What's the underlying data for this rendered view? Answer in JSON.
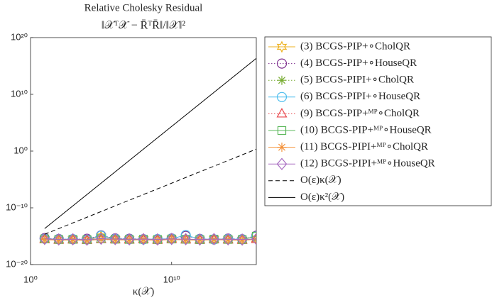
{
  "chart_data": {
    "type": "line",
    "title": "Relative Cholesky Residual",
    "subtitle": "‖𝒳ᵀ𝒳 − R̄ᵀR̄‖/‖𝒳‖²",
    "xlabel": "κ(𝒳)",
    "xscale": "log",
    "yscale": "log",
    "xlim": [
      1,
      1e+16
    ],
    "ylim": [
      1e-20,
      1e+20
    ],
    "xticks": [
      {
        "value": 1,
        "label": "10⁰"
      },
      {
        "value": 10000000000.0,
        "label": "10¹⁰"
      }
    ],
    "yticks": [
      {
        "value": 1e-20,
        "label": "10⁻²⁰"
      },
      {
        "value": 1e-10,
        "label": "10⁻¹⁰"
      },
      {
        "value": 1,
        "label": "10⁰"
      },
      {
        "value": 10000000000.0,
        "label": "10¹⁰"
      },
      {
        "value": 1e+20,
        "label": "10²⁰"
      }
    ],
    "grid": false,
    "legend": "outside-right",
    "x": [
      10.0,
      100.0,
      1000.0,
      10000.0,
      100000.0,
      1000000.0,
      10000000.0,
      100000000.0,
      1000000000.0,
      10000000000.0,
      100000000000.0,
      1000000000000.0,
      10000000000000.0,
      100000000000000.0,
      1000000000000000.0,
      1e+16
    ],
    "series": [
      {
        "name": "(3) BCGS-PIP+∘CholQR",
        "color": "#EDB120",
        "linestyle": "solid",
        "marker": "hexagram",
        "values": [
          3.1e-16,
          2.4e-16,
          2.7e-16,
          2.2e-16,
          9.5e-16,
          2.9e-16,
          2.6e-16,
          3e-16,
          2.5e-16,
          3.3e-16,
          2.8e-16,
          2.4e-16,
          3.1e-16,
          2.6e-16,
          2.3e-16,
          3.4e-16
        ]
      },
      {
        "name": "(4) BCGS-PIP+∘HouseQR",
        "color": "#7E2F8E",
        "linestyle": "dotted",
        "marker": "circle",
        "values": [
          4.5e-16,
          3.2e-16,
          2.9e-16,
          3.5e-16,
          1.4e-15,
          4.1e-16,
          3.6e-16,
          3e-16,
          2.8e-16,
          3.9e-16,
          1.1e-15,
          3.3e-16,
          2.7e-16,
          3.8e-16,
          3e-16,
          1.2e-15
        ]
      },
      {
        "name": "(5) BCGS-PIPI+∘CholQR",
        "color": "#77AC30",
        "linestyle": "dotted",
        "marker": "asterisk",
        "values": [
          2.8e-16,
          2.2e-16,
          2.5e-16,
          2e-16,
          3e-16,
          2.6e-16,
          2.3e-16,
          2.7e-16,
          2.1e-16,
          2.9e-16,
          2.4e-16,
          2.2e-16,
          2.8e-16,
          2.3e-16,
          2.1e-16,
          3e-16
        ]
      },
      {
        "name": "(6) BCGS-PIPI+∘HouseQR",
        "color": "#4DBEEE",
        "linestyle": "solid",
        "marker": "circle",
        "values": [
          3.6e-16,
          2.9e-16,
          3.1e-16,
          2.7e-16,
          1.2e-15,
          3.4e-16,
          3e-16,
          2.8e-16,
          3.2e-16,
          3.5e-16,
          1.6e-15,
          3e-16,
          2.9e-16,
          3.3e-16,
          2.8e-16,
          9e-16
        ]
      },
      {
        "name": "(9) BCGS-PIP+ᴹᴾ∘CholQR",
        "color": "#E8474C",
        "linestyle": "dotted",
        "marker": "triangle",
        "values": [
          2.6e-16,
          2.1e-16,
          2.3e-16,
          1.9e-16,
          2.8e-16,
          2.4e-16,
          2.2e-16,
          2.5e-16,
          2e-16,
          2.7e-16,
          2.3e-16,
          2.1e-16,
          2.6e-16,
          2.2e-16,
          2e-16,
          2.8e-16
        ]
      },
      {
        "name": "(10) BCGS-PIP+ᴹᴾ∘HouseQR",
        "color": "#5DB85C",
        "linestyle": "solid",
        "marker": "square",
        "values": [
          3.3e-16,
          2.6e-16,
          2.8e-16,
          2.4e-16,
          3.6e-16,
          3e-16,
          2.7e-16,
          2.9e-16,
          2.6e-16,
          3.2e-16,
          2.9e-16,
          2.5e-16,
          3e-16,
          2.7e-16,
          2.5e-16,
          1e-15
        ]
      },
      {
        "name": "(11) BCGS-PIPI+ᴹᴾ∘CholQR",
        "color": "#F4923A",
        "linestyle": "solid",
        "marker": "asterisk",
        "values": [
          2.5e-16,
          2e-16,
          2.2e-16,
          1.8e-16,
          2.7e-16,
          2.3e-16,
          2.1e-16,
          2.4e-16,
          1.9e-16,
          2.6e-16,
          2.2e-16,
          2e-16,
          2.5e-16,
          2.1e-16,
          1.9e-16,
          2.7e-16
        ]
      },
      {
        "name": "(12) BCGS-PIPI+ᴹᴾ∘HouseQR",
        "color": "#A86CC1",
        "linestyle": "solid",
        "marker": "diamond",
        "values": [
          3.4e-16,
          2.7e-16,
          2.9e-16,
          2.5e-16,
          3.7e-16,
          3.1e-16,
          2.8e-16,
          3e-16,
          2.7e-16,
          3.3e-16,
          3e-16,
          2.6e-16,
          3.1e-16,
          2.8e-16,
          2.6e-16,
          3.2e-16
        ]
      },
      {
        "name": "O(ε)κ(𝒳)",
        "color": "#000000",
        "linestyle": "dashed",
        "marker": "none",
        "values": [
          2.2e-15,
          2.2e-14,
          2.2e-13,
          2.2e-12,
          2.2e-11,
          2.2e-10,
          2.2e-09,
          2.2e-08,
          2.2e-07,
          2.2e-06,
          2.2e-05,
          0.00022,
          0.0022,
          0.022,
          0.22,
          2.2
        ]
      },
      {
        "name": "O(ε)κ²(𝒳)",
        "color": "#000000",
        "linestyle": "solid",
        "marker": "none",
        "values": [
          2.2e-14,
          2.2e-12,
          2.2e-10,
          2.2e-08,
          2.2e-06,
          0.00022,
          0.022,
          2.2,
          220.0,
          22000.0,
          2200000.0,
          220000000.0,
          22000000000.0,
          2200000000000.0,
          220000000000000.0,
          2.2e+16
        ]
      }
    ]
  }
}
